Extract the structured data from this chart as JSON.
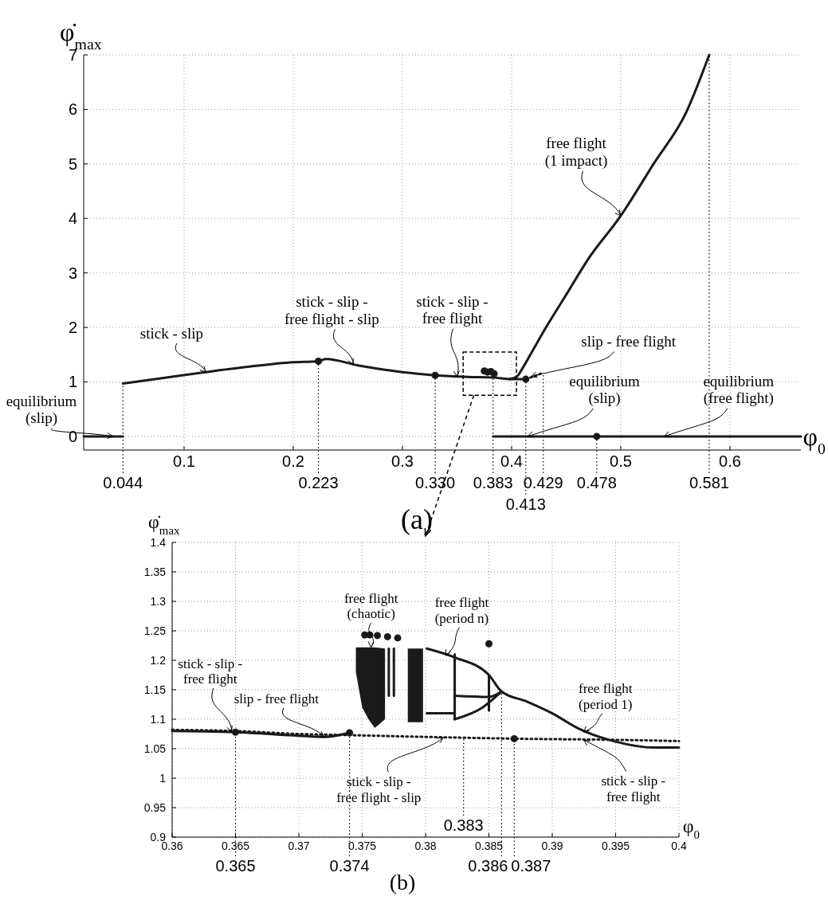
{
  "chart_data": [
    {
      "type": "line",
      "xlabel": "φ$_{0}$",
      "ylabel": "φ̇$_{max}$",
      "xlim": [
        0.008,
        0.665
      ],
      "ylim": [
        -0.25,
        7
      ],
      "xticks": [
        0.1,
        0.2,
        0.3,
        0.4,
        0.5,
        0.6
      ],
      "yticks": [
        0,
        1,
        2,
        3,
        4,
        5,
        6,
        7
      ],
      "grid": true,
      "series": [
        {
          "color": "#1a1a1a",
          "line_style": "solid",
          "x": [
            0.008,
            0.044
          ],
          "values": [
            0,
            0
          ]
        },
        {
          "color": "#1a1a1a",
          "line_style": "solid",
          "x": [
            0.044,
            0.08,
            0.12,
            0.16,
            0.2,
            0.223,
            0.23,
            0.26,
            0.3,
            0.33,
            0.36,
            0.383,
            0.4,
            0.413
          ],
          "values": [
            0.97,
            1.07,
            1.18,
            1.28,
            1.36,
            1.38,
            1.42,
            1.3,
            1.18,
            1.12,
            1.09,
            1.08,
            1.05,
            1.05
          ]
        },
        {
          "color": "#1a1a1a",
          "line_style": "dotted",
          "x": [
            0.413,
            0.42,
            0.429
          ],
          "values": [
            1.05,
            1.1,
            1.17
          ]
        },
        {
          "color": "#1a1a1a",
          "line_style": "solid",
          "x": [
            0.398,
            0.405,
            0.41,
            0.42,
            0.43,
            0.45,
            0.47,
            0.5,
            0.53,
            0.56,
            0.581
          ],
          "values": [
            1.05,
            1.1,
            1.25,
            1.6,
            1.95,
            2.6,
            3.25,
            4.05,
            5.0,
            5.95,
            7.0
          ]
        },
        {
          "color": "#1a1a1a",
          "line_style": "solid",
          "x": [
            0.383,
            0.665
          ],
          "values": [
            0,
            0
          ]
        },
        {
          "type": "scatter",
          "color": "#1a1a1a",
          "marker": "circle",
          "x": [
            0.223,
            0.33,
            0.413,
            0.478,
            0.375,
            0.378,
            0.381,
            0.384
          ],
          "values": [
            1.38,
            1.12,
            1.05,
            0,
            1.2,
            1.18,
            1.19,
            1.15
          ]
        }
      ],
      "annotations": [
        {
          "text": "equilibrium\n(slip)",
          "x": 0.035,
          "y": 0
        },
        {
          "text": "stick - slip",
          "x": 0.12,
          "y": 1.18
        },
        {
          "text": "stick - slip -\nfree flight - slip",
          "x": 0.255,
          "y": 1.32
        },
        {
          "text": "stick - slip -\nfree flight",
          "x": 0.35,
          "y": 1.095
        },
        {
          "text": "slip - free flight",
          "x": 0.418,
          "y": 1.1
        },
        {
          "text": "equilibrium\n(slip)",
          "x": 0.415,
          "y": 0
        },
        {
          "text": "equilibrium\n(free flight)",
          "x": 0.54,
          "y": 0
        },
        {
          "text": "free flight\n(1 impact)",
          "x": 0.5,
          "y": 4.05
        },
        {
          "text": "0.044",
          "x": 0.044,
          "y": 0.97
        },
        {
          "text": "0.223",
          "x": 0.223,
          "y": 1.38
        },
        {
          "text": "0.330",
          "x": 0.33,
          "y": 1.12
        },
        {
          "text": "0.383",
          "x": 0.383,
          "y": 1.08
        },
        {
          "text": "0.413",
          "x": 0.413,
          "y": 1.05
        },
        {
          "text": "0.429",
          "x": 0.429,
          "y": 1.17
        },
        {
          "text": "0.478",
          "x": 0.478,
          "y": 0
        },
        {
          "text": "0.581",
          "x": 0.581,
          "y": 7.0
        },
        "(a)"
      ]
    },
    {
      "type": "line",
      "xlabel": "φ$_{0}$",
      "ylabel": "φ̇$_{max}$",
      "xlim": [
        0.36,
        0.4
      ],
      "ylim": [
        0.9,
        1.4
      ],
      "xticks": [
        0.36,
        0.365,
        0.37,
        0.375,
        0.38,
        0.385,
        0.39,
        0.395,
        0.4
      ],
      "yticks": [
        0.9,
        0.95,
        1,
        1.05,
        1.1,
        1.15,
        1.2,
        1.25,
        1.3,
        1.35,
        1.4
      ],
      "grid": true,
      "series": [
        {
          "color": "#1a1a1a",
          "line_style": "solid",
          "x": [
            0.36,
            0.365,
            0.37,
            0.372,
            0.374
          ],
          "values": [
            1.08,
            1.078,
            1.072,
            1.07,
            1.077
          ]
        },
        {
          "color": "#1a1a1a",
          "line_style": "dotted",
          "x": [
            0.36,
            0.365,
            0.37,
            0.374,
            0.38,
            0.387,
            0.395,
            0.4
          ],
          "values": [
            1.082,
            1.08,
            1.075,
            1.073,
            1.07,
            1.067,
            1.065,
            1.063
          ]
        },
        {
          "color": "#1a1a1a",
          "x": [
            0.3745,
            0.375,
            0.3755,
            0.376,
            0.3768
          ],
          "values": [
            null,
            null,
            null,
            null,
            null
          ],
          "upper": [
            1.222,
            1.222,
            1.222,
            1.222,
            1.22
          ],
          "lower": [
            1.18,
            1.12,
            1.1,
            1.085,
            1.1
          ]
        },
        {
          "color": "#1a1a1a",
          "x": [
            0.3786,
            0.3798
          ],
          "values": [
            null,
            null
          ],
          "upper": [
            1.22,
            1.22
          ],
          "lower": [
            1.095,
            1.095
          ]
        },
        {
          "color": "#1a1a1a",
          "line_style": "solid",
          "x": [
            0.3771,
            0.3771
          ],
          "values": [
            1.14,
            1.22
          ]
        },
        {
          "color": "#1a1a1a",
          "line_style": "solid",
          "x": [
            0.3775,
            0.3775
          ],
          "values": [
            1.22,
            1.14
          ]
        },
        {
          "color": "#1a1a1a",
          "line_style": "solid",
          "x": [
            0.3801,
            0.3823,
            0.385,
            0.386,
            0.388,
            0.39,
            0.392,
            0.395,
            0.398,
            0.4
          ],
          "values": [
            1.22,
            1.205,
            1.175,
            1.147,
            1.13,
            1.11,
            1.085,
            1.062,
            1.052,
            1.052
          ]
        },
        {
          "color": "#1a1a1a",
          "line_style": "solid",
          "x": [
            0.3823,
            0.3823
          ],
          "values": [
            1.21,
            1.1
          ]
        },
        {
          "color": "#1a1a1a",
          "line_style": "solid",
          "x": [
            0.3801,
            0.3823
          ],
          "values": [
            1.11,
            1.11
          ]
        },
        {
          "color": "#1a1a1a",
          "line_style": "solid",
          "x": [
            0.3823,
            0.3845,
            0.386
          ],
          "values": [
            1.1,
            1.12,
            1.147
          ]
        },
        {
          "color": "#1a1a1a",
          "line_style": "solid",
          "x": [
            0.3823,
            0.385,
            0.386
          ],
          "values": [
            1.14,
            1.138,
            1.147
          ]
        },
        {
          "color": "#1a1a1a",
          "line_style": "solid",
          "x": [
            0.385,
            0.385
          ],
          "values": [
            1.175,
            1.115
          ]
        },
        {
          "type": "scatter",
          "color": "#1a1a1a",
          "marker": "circle",
          "x": [
            0.3752,
            0.3756,
            0.3762,
            0.377,
            0.3778,
            0.385
          ],
          "values": [
            1.243,
            1.243,
            1.242,
            1.24,
            1.238,
            1.228
          ]
        },
        {
          "type": "scatter",
          "color": "#1a1a1a",
          "marker": "circle",
          "x": [
            0.365,
            0.374,
            0.387
          ],
          "values": [
            1.078,
            1.077,
            1.067
          ]
        }
      ],
      "annotations": [
        {
          "text": "stick - slip -\nfree flight",
          "x": 0.3647,
          "y": 1.079
        },
        {
          "text": "slip - free flight",
          "x": 0.372,
          "y": 1.07
        },
        {
          "text": "free flight\n(chaotic)",
          "x": 0.3757,
          "y": 1.222
        },
        {
          "text": "free flight\n(period n)",
          "x": 0.3816,
          "y": 1.208
        },
        {
          "text": "free flight\n(period 1)",
          "x": 0.3925,
          "y": 1.078
        },
        {
          "text": "stick - slip -\nfree flight - slip",
          "x": 0.3814,
          "y": 1.069
        },
        {
          "text": "stick - slip -\nfree flight",
          "x": 0.3925,
          "y": 1.065
        },
        {
          "text": "0.365",
          "x": 0.365,
          "y": 1.078
        },
        {
          "text": "0.374",
          "x": 0.374,
          "y": 1.077
        },
        {
          "text": "0.383",
          "x": 0.383,
          "y": 1.069
        },
        {
          "text": "0.386",
          "x": 0.386,
          "y": 1.147
        },
        {
          "text": "0.387",
          "x": 0.387,
          "y": 1.067
        },
        "(b)"
      ]
    }
  ]
}
